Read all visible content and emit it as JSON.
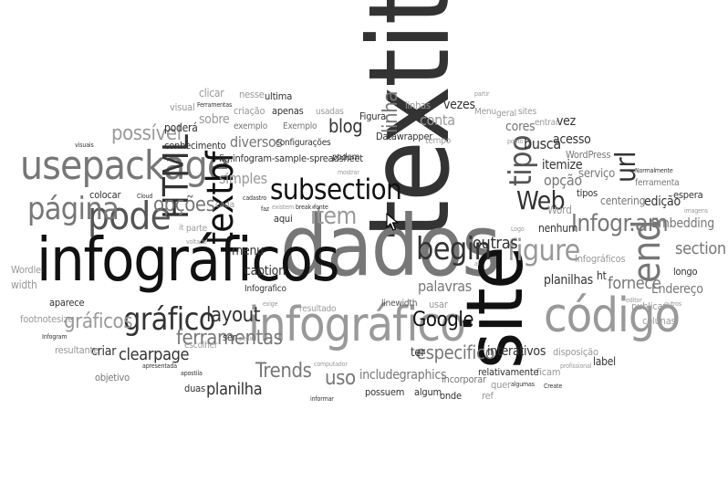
{
  "cloud": {
    "words": [
      "textit",
      "dados",
      "infográficos",
      "site",
      "infográfico",
      "código",
      "usepackage",
      "textbf",
      "pode",
      "HTML",
      "subsection",
      "página",
      "begin",
      "gráfico",
      "tipo",
      "figure",
      "item",
      "Web",
      "url",
      "end",
      "Google",
      "Trends",
      "opções",
      "Infogr.am",
      "layout",
      "ferramentas",
      "possível",
      "linha",
      "gráficos",
      "blog",
      "section",
      "especifico",
      "outras",
      "fornece",
      "palavras",
      "uso",
      "planilha",
      "clearpage",
      "conta",
      "itemize",
      "opção",
      "Embedding",
      "includegraphics",
      "interativos",
      "simples",
      "diversos",
      "criar",
      "caption",
      "menu",
      "Endereço",
      "planilhas",
      "fig:infogram-sample-spreadsheet",
      "Datawrapper",
      "busca",
      "acesso",
      "vezes",
      "WordPress",
      "serviço",
      "edição",
      "centering",
      "espera",
      "cores",
      "colunas",
      "publicar",
      "longo",
      "label",
      "disposição",
      "ficam",
      "relativamente",
      "incorporar",
      "onde",
      "algum",
      "possuem",
      "ter",
      "ref",
      "quer",
      "usar",
      "resultado",
      "linewidth",
      "Infográficos",
      "nenhum",
      "Word",
      "tipos",
      "Figura",
      "Exemplo",
      "exemplo",
      "configurações",
      "usadas",
      "conhecimento",
      "visual",
      "sobre",
      "clicar",
      "nesse",
      "criação",
      "apenas",
      "ultima",
      "podem",
      "linhas",
      "partir",
      "Menu",
      "geral",
      "sites",
      "entrar",
      "vez",
      "ponto",
      "tempo",
      "colocar",
      "cada",
      "aqui",
      "parte",
      "escolher",
      "ser",
      "duas",
      "apostila",
      "objetivo",
      "resultante",
      "Infogram",
      "footnotesize",
      "width",
      "Wordle",
      "aparece",
      "visuais",
      "Cloud",
      "ht",
      "al",
      "Logo",
      "imagens",
      "Normalmente",
      "ferramenta",
      "Ferramentas",
      "poderá",
      "mostrar",
      "break",
      "existem",
      "fonte",
      "faz",
      "voltado",
      "informar",
      "computador",
      "Create",
      "profissional",
      "outros",
      "editor",
      "algumas",
      "apresentada",
      "exige",
      "pedir",
      "cadastro",
      "it",
      "Infografico"
    ]
  }
}
